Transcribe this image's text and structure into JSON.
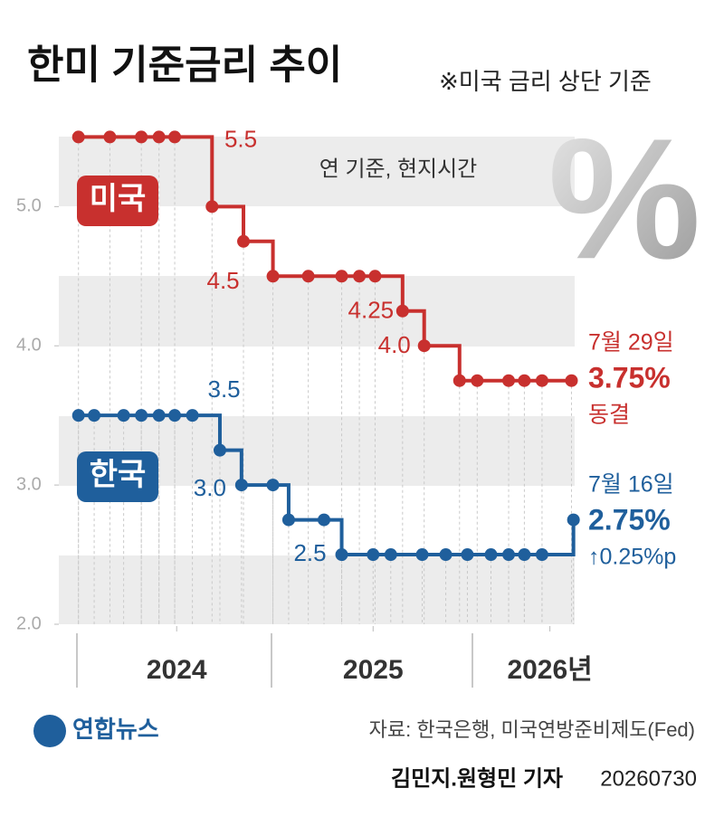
{
  "header": {
    "title": "한미 기준금리 추이",
    "subtitle": "※미국 금리 상단 기준",
    "note": "연 기준, 현지시간",
    "symbol": "%"
  },
  "chart_data": {
    "type": "step-line",
    "xlim": [
      2023.9,
      2026.54
    ],
    "xticks": [
      {
        "value": 2024.5,
        "label": "2024"
      },
      {
        "value": 2025.5,
        "label": "2025"
      },
      {
        "value": 2026.4,
        "label": "2026년"
      }
    ],
    "ylim": [
      2,
      5.6
    ],
    "yticks": [
      {
        "value": 2,
        "label": "2.0"
      },
      {
        "value": 3,
        "label": "3.0"
      },
      {
        "value": 4,
        "label": "4.0"
      },
      {
        "value": 5,
        "label": "5.0"
      }
    ],
    "series": [
      {
        "name": "미국",
        "color": "#c8302e",
        "x": [
          2024.0,
          2024.16,
          2024.32,
          2024.41,
          2024.49,
          2024.68,
          2024.84,
          2024.99,
          2025.17,
          2025.34,
          2025.43,
          2025.51,
          2025.65,
          2025.76,
          2025.94,
          2026.03,
          2026.19,
          2026.27,
          2026.36,
          2026.51
        ],
        "values": [
          5.5,
          5.5,
          5.5,
          5.5,
          5.5,
          5.0,
          4.75,
          4.5,
          4.5,
          4.5,
          4.5,
          4.5,
          4.25,
          4.0,
          3.75,
          3.75,
          3.75,
          3.75,
          3.75,
          3.75
        ],
        "value_labels": [
          null,
          null,
          null,
          null,
          "5.5",
          null,
          null,
          "4.5",
          null,
          null,
          null,
          null,
          "4.25",
          "4.0",
          null,
          null,
          null,
          null,
          null,
          null
        ],
        "latest_date": "7월 29일",
        "latest_rate": "3.75%",
        "change": "동결"
      },
      {
        "name": "한국",
        "color": "#1f5f9c",
        "x": [
          2024.0,
          2024.08,
          2024.23,
          2024.32,
          2024.41,
          2024.49,
          2024.58,
          2024.72,
          2024.83,
          2024.99,
          2025.07,
          2025.25,
          2025.34,
          2025.5,
          2025.59,
          2025.75,
          2025.87,
          2025.98,
          2026.1,
          2026.19,
          2026.27,
          2026.36,
          2026.52
        ],
        "values": [
          3.5,
          3.5,
          3.5,
          3.5,
          3.5,
          3.5,
          3.5,
          3.25,
          3.0,
          3.0,
          2.75,
          2.75,
          2.5,
          2.5,
          2.5,
          2.5,
          2.5,
          2.5,
          2.5,
          2.5,
          2.5,
          2.5,
          2.75
        ],
        "value_labels": [
          null,
          null,
          null,
          null,
          null,
          null,
          "3.5",
          null,
          "3.0",
          null,
          null,
          null,
          "2.5",
          null,
          null,
          null,
          null,
          null,
          null,
          null,
          null,
          null,
          null
        ],
        "latest_date": "7월 16일",
        "latest_rate": "2.75%",
        "change": "↑0.25%p"
      }
    ]
  },
  "footer": {
    "logo": "연합뉴스",
    "source": "자료: 한국은행, 미국연방준비제도(Fed)",
    "byline": "김민지.원형민 기자",
    "date": "20260730"
  }
}
